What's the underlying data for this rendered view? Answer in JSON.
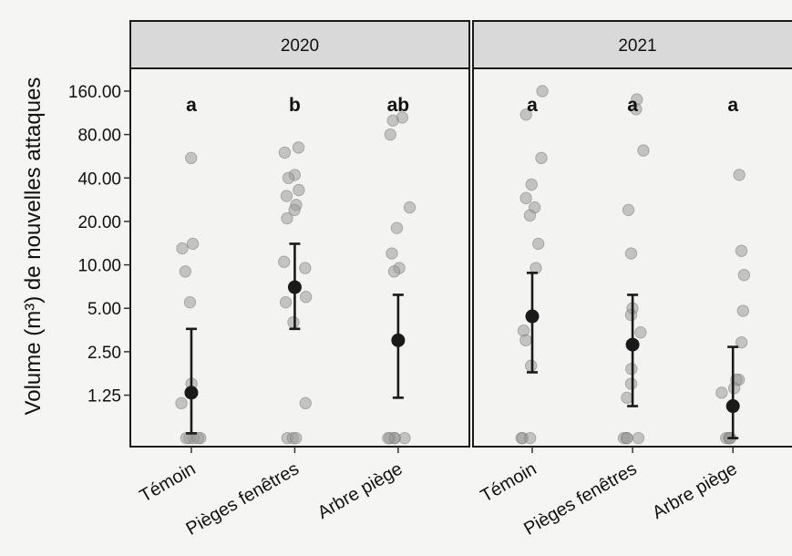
{
  "chart_data": {
    "type": "scatter",
    "ylabel": "Volume (m³) de nouvelles attaques",
    "y_scale": "log2",
    "y_ticks": [
      "1.25",
      "2.50",
      "5.00",
      "10.00",
      "20.00",
      "40.00",
      "80.00",
      "160.00"
    ],
    "y_tick_values": [
      1.25,
      2.5,
      5,
      10,
      20,
      40,
      80,
      160
    ],
    "ylim": [
      0.55,
      230
    ],
    "categories": [
      "Témoin",
      "Pièges fenêtres",
      "Arbre piège"
    ],
    "grid": true,
    "colors": {
      "raw_points": "#9a9a9a",
      "means": "#1a1a1a",
      "strip": "#d9d9d9"
    },
    "panels": [
      {
        "strip_label": "2020",
        "groups": [
          {
            "category": "Témoin",
            "letter": "a",
            "mean": 1.3,
            "lower": 0.68,
            "upper": 3.6,
            "points": [
              55,
              14,
              13,
              9,
              5.5,
              1.5,
              1.1,
              0.63,
              0.63,
              0.63,
              0.63,
              0.63
            ]
          },
          {
            "category": "Pièges fenêtres",
            "letter": "b",
            "mean": 7,
            "lower": 3.6,
            "upper": 14,
            "points": [
              65,
              60,
              42,
              40,
              33,
              30,
              26,
              24,
              21,
              10.5,
              9.5,
              6,
              5.5,
              4,
              1.1,
              0.63,
              0.63,
              0.63
            ]
          },
          {
            "category": "Arbre piège",
            "letter": "ab",
            "mean": 3,
            "lower": 1.2,
            "upper": 6.2,
            "points": [
              105,
              100,
              80,
              25,
              18,
              12,
              9.5,
              9,
              0.63,
              0.63,
              0.63,
              0.63,
              0.63
            ]
          }
        ]
      },
      {
        "strip_label": "2021",
        "groups": [
          {
            "category": "Témoin",
            "letter": "a",
            "mean": 4.4,
            "lower": 1.8,
            "upper": 8.8,
            "points": [
              160,
              110,
              55,
              36,
              29,
              25,
              22,
              14,
              9.5,
              3.5,
              3,
              2,
              0.63,
              0.63,
              0.63
            ]
          },
          {
            "category": "Pièges fenêtres",
            "letter": "a",
            "mean": 2.8,
            "lower": 1.05,
            "upper": 6.2,
            "points": [
              140,
              120,
              62,
              24,
              12,
              5,
              4.5,
              3.4,
              1.9,
              1.5,
              1.2,
              0.63,
              0.63,
              0.63,
              0.63
            ]
          },
          {
            "category": "Arbre piège",
            "letter": "a",
            "mean": 1.05,
            "lower": 0.63,
            "upper": 2.7,
            "points": [
              42,
              12.5,
              8.5,
              4.8,
              2.9,
              1.6,
              1.6,
              1.4,
              1.3,
              0.63,
              0.63,
              0.63,
              0.63
            ]
          }
        ]
      }
    ]
  }
}
